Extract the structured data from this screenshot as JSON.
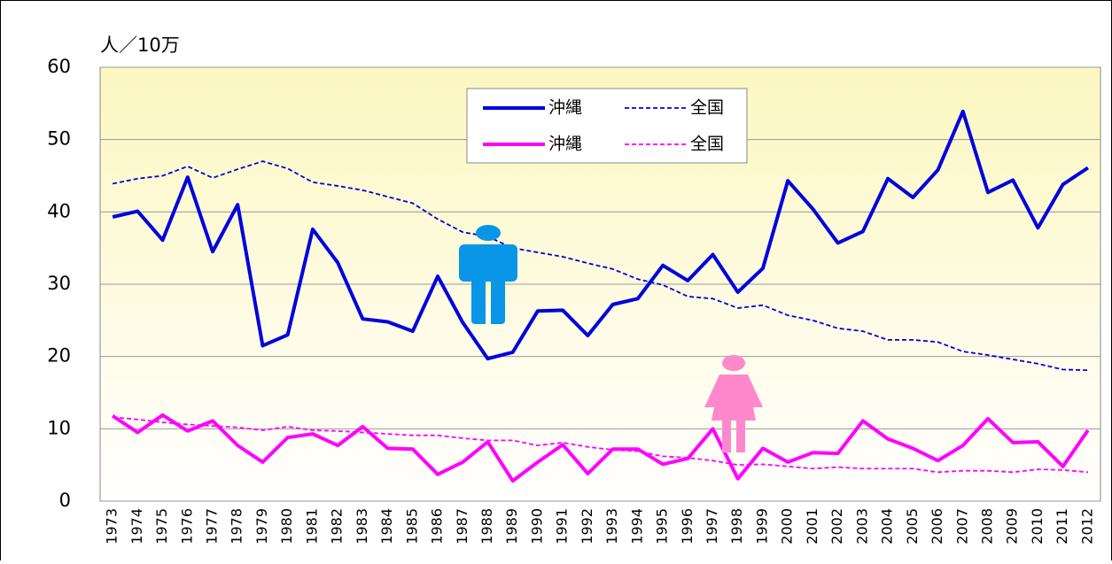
{
  "chart_data": {
    "type": "line",
    "y_label": "人／10万",
    "categories": [
      "1973",
      "1974",
      "1975",
      "1976",
      "1977",
      "1978",
      "1979",
      "1980",
      "1981",
      "1982",
      "1983",
      "1984",
      "1985",
      "1986",
      "1987",
      "1988",
      "1989",
      "1990",
      "1991",
      "1992",
      "1993",
      "1994",
      "1995",
      "1996",
      "1997",
      "1998",
      "1999",
      "2000",
      "2001",
      "2002",
      "2003",
      "2004",
      "2005",
      "2006",
      "2007",
      "2008",
      "2009",
      "2010",
      "2011",
      "2012"
    ],
    "series": [
      {
        "name": "沖縄",
        "color": "#0000e0",
        "line_style": "solid",
        "values": [
          39.3,
          40.1,
          36.1,
          44.8,
          34.5,
          41.0,
          21.5,
          23.0,
          37.6,
          33.0,
          25.2,
          24.8,
          23.5,
          31.1,
          24.7,
          19.7,
          20.6,
          26.3,
          26.4,
          22.9,
          27.2,
          28.0,
          32.6,
          30.5,
          34.1,
          28.9,
          32.2,
          44.3,
          40.4,
          35.7,
          37.3,
          44.6,
          42.0,
          45.8,
          53.9,
          42.7,
          44.4,
          37.8,
          43.8,
          46.1
        ]
      },
      {
        "name": "全国",
        "color": "#0000e0",
        "line_style": "dashed",
        "values": [
          43.9,
          44.6,
          45.0,
          46.3,
          44.7,
          45.9,
          47.0,
          46.0,
          44.1,
          43.6,
          43.0,
          42.1,
          41.2,
          39.0,
          37.2,
          36.6,
          35.0,
          34.4,
          33.8,
          32.9,
          32.1,
          30.7,
          29.9,
          28.3,
          28.0,
          26.7,
          27.1,
          25.7,
          25.0,
          23.9,
          23.5,
          22.3,
          22.3,
          22.0,
          20.7,
          20.2,
          19.6,
          19.0,
          18.2,
          18.1
        ]
      },
      {
        "name": "沖縄",
        "color": "#ff00ff",
        "line_style": "solid",
        "values": [
          11.8,
          9.5,
          11.9,
          9.7,
          11.1,
          7.7,
          5.4,
          8.8,
          9.3,
          7.7,
          10.3,
          7.3,
          7.2,
          3.7,
          5.4,
          8.2,
          2.8,
          5.4,
          7.8,
          3.8,
          7.2,
          7.2,
          5.1,
          5.9,
          10.0,
          3.1,
          7.3,
          5.4,
          6.7,
          6.6,
          11.1,
          8.6,
          7.3,
          5.6,
          7.7,
          11.4,
          8.1,
          8.2,
          4.8,
          9.8
        ]
      },
      {
        "name": "全国",
        "color": "#ff00ff",
        "line_style": "dashed",
        "values": [
          11.6,
          11.3,
          10.9,
          10.6,
          10.4,
          10.2,
          9.8,
          10.3,
          9.8,
          9.7,
          9.5,
          9.3,
          9.1,
          9.1,
          8.7,
          8.4,
          8.4,
          7.7,
          8.1,
          7.5,
          7.1,
          6.9,
          6.2,
          6.0,
          5.6,
          5.0,
          5.1,
          4.8,
          4.5,
          4.7,
          4.5,
          4.5,
          4.5,
          4.0,
          4.2,
          4.2,
          4.0,
          4.4,
          4.3,
          4.0
        ]
      }
    ],
    "ylim": [
      0,
      60
    ],
    "yticks": [
      0,
      10,
      20,
      30,
      40,
      50,
      60
    ],
    "grid": true
  }
}
